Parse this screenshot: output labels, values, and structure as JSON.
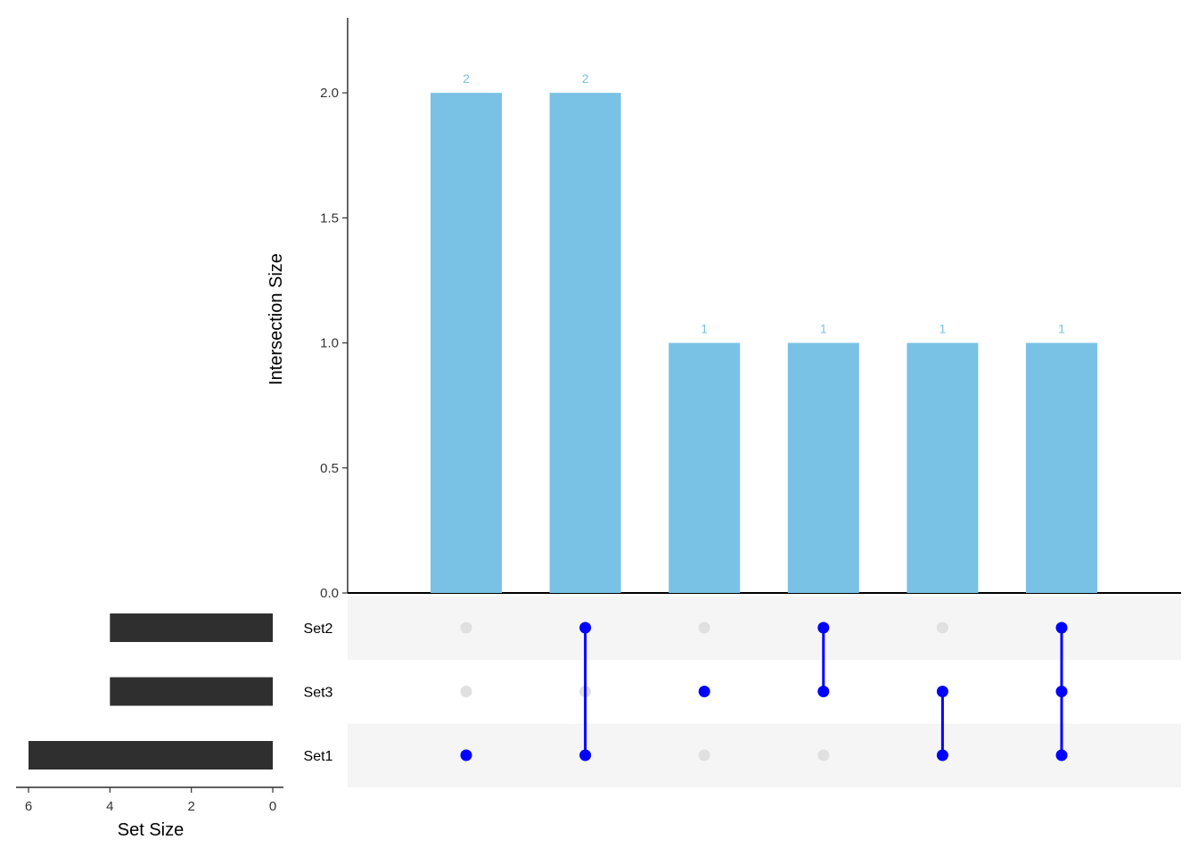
{
  "chart_data": {
    "type": "upset",
    "sets": [
      "Set2",
      "Set3",
      "Set1"
    ],
    "set_sizes": [
      4,
      4,
      6
    ],
    "intersections": [
      {
        "members": [
          "Set1"
        ],
        "size": 2
      },
      {
        "members": [
          "Set2",
          "Set1"
        ],
        "size": 2
      },
      {
        "members": [
          "Set3"
        ],
        "size": 1
      },
      {
        "members": [
          "Set2",
          "Set3"
        ],
        "size": 1
      },
      {
        "members": [
          "Set3",
          "Set1"
        ],
        "size": 1
      },
      {
        "members": [
          "Set2",
          "Set3",
          "Set1"
        ],
        "size": 1
      }
    ],
    "bar_labels": [
      "2",
      "2",
      "1",
      "1",
      "1",
      "1"
    ],
    "ylabel": "Intersection Size",
    "ylim": [
      0,
      2.3
    ],
    "yticks": [
      0,
      0.5,
      1,
      1.5,
      2
    ],
    "ytick_labels": [
      "0.0",
      "0.5",
      "1.0",
      "1.5",
      "2.0"
    ],
    "set_size_label": "Set Size",
    "set_size_xlim": [
      0,
      6.1
    ],
    "set_size_ticks": [
      6,
      4,
      2,
      0
    ],
    "set_size_tick_labels": [
      "6",
      "4",
      "2",
      "0"
    ],
    "colors": {
      "bar": "#7AC2E5",
      "bar_label": "#7AC2E5",
      "dot_active": "#0000FF",
      "dot_inactive": "#E0E0E0",
      "stripe": "#F5F5F5",
      "set_bar": "#2F2F2F"
    }
  }
}
